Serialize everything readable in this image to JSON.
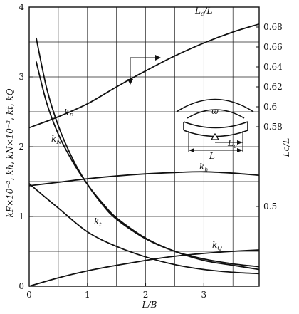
{
  "chart_data": {
    "type": "line",
    "xlabel": "L/B",
    "ylabel": "kF×10⁻², kh, kN×10⁻³, kt, kQ",
    "ylabel_right": "Lc/L",
    "xlim": [
      0,
      3.95
    ],
    "ylim": [
      0,
      4
    ],
    "ylim_right": [
      0.42,
      0.7
    ],
    "x_ticks": [
      "0",
      "1",
      "2",
      "3"
    ],
    "y_ticks": [
      "0",
      "1",
      "2",
      "3",
      "4"
    ],
    "y_right_ticks": [
      "0.5",
      "0.58",
      "0.6",
      "0.62",
      "0.64",
      "0.66",
      "0.68"
    ],
    "grid": true,
    "series": [
      {
        "name": "kF",
        "x": [
          0.12,
          0.3,
          0.5,
          0.75,
          1.0,
          1.25,
          1.5,
          2.0,
          2.5,
          3.0,
          3.5,
          3.95
        ],
        "values": [
          3.56,
          2.84,
          2.3,
          1.82,
          1.46,
          1.18,
          0.96,
          0.68,
          0.5,
          0.39,
          0.32,
          0.28
        ]
      },
      {
        "name": "kN",
        "x": [
          0.12,
          0.3,
          0.5,
          0.75,
          1.0,
          1.25,
          1.5,
          2.0,
          2.5,
          3.0,
          3.5,
          3.95
        ],
        "values": [
          3.22,
          2.63,
          2.18,
          1.78,
          1.46,
          1.2,
          0.98,
          0.69,
          0.5,
          0.37,
          0.3,
          0.24
        ]
      },
      {
        "name": "kh",
        "x": [
          0,
          0.5,
          1.0,
          1.5,
          2.0,
          2.5,
          3.0,
          3.5,
          3.95
        ],
        "values": [
          1.44,
          1.49,
          1.54,
          1.58,
          1.61,
          1.63,
          1.64,
          1.62,
          1.59
        ]
      },
      {
        "name": "kt",
        "x": [
          0,
          0.5,
          1.0,
          1.5,
          2.0,
          2.5,
          3.0,
          3.5,
          3.95
        ],
        "values": [
          1.47,
          1.12,
          0.78,
          0.57,
          0.42,
          0.31,
          0.24,
          0.2,
          0.18
        ]
      },
      {
        "name": "kQ",
        "x": [
          0,
          0.5,
          1.0,
          1.5,
          2.0,
          2.5,
          3.0,
          3.5,
          3.95
        ],
        "values": [
          0.0,
          0.12,
          0.22,
          0.3,
          0.37,
          0.43,
          0.47,
          0.5,
          0.52
        ]
      },
      {
        "name": "Lc/L",
        "axis": "right",
        "x": [
          0,
          0.5,
          1.0,
          1.5,
          2.0,
          2.5,
          3.0,
          3.5,
          3.95
        ],
        "values": [
          0.579,
          0.59,
          0.603,
          0.62,
          0.636,
          0.651,
          0.664,
          0.675,
          0.683
        ]
      }
    ],
    "series_labels": {
      "kF": {
        "main": "k",
        "sub": "F"
      },
      "kN": {
        "main": "k",
        "sub": "N"
      },
      "kh": {
        "main": "k",
        "sub": "h"
      },
      "kt": {
        "main": "k",
        "sub": "t"
      },
      "kQ": {
        "main": "k",
        "sub": "Q"
      },
      "LcL": {
        "main": "L",
        "sub": "c",
        "tail": "/L"
      }
    },
    "inset": {
      "omega": "ω",
      "L": "L",
      "Lc": "L",
      "Lc_sub": "c"
    }
  }
}
